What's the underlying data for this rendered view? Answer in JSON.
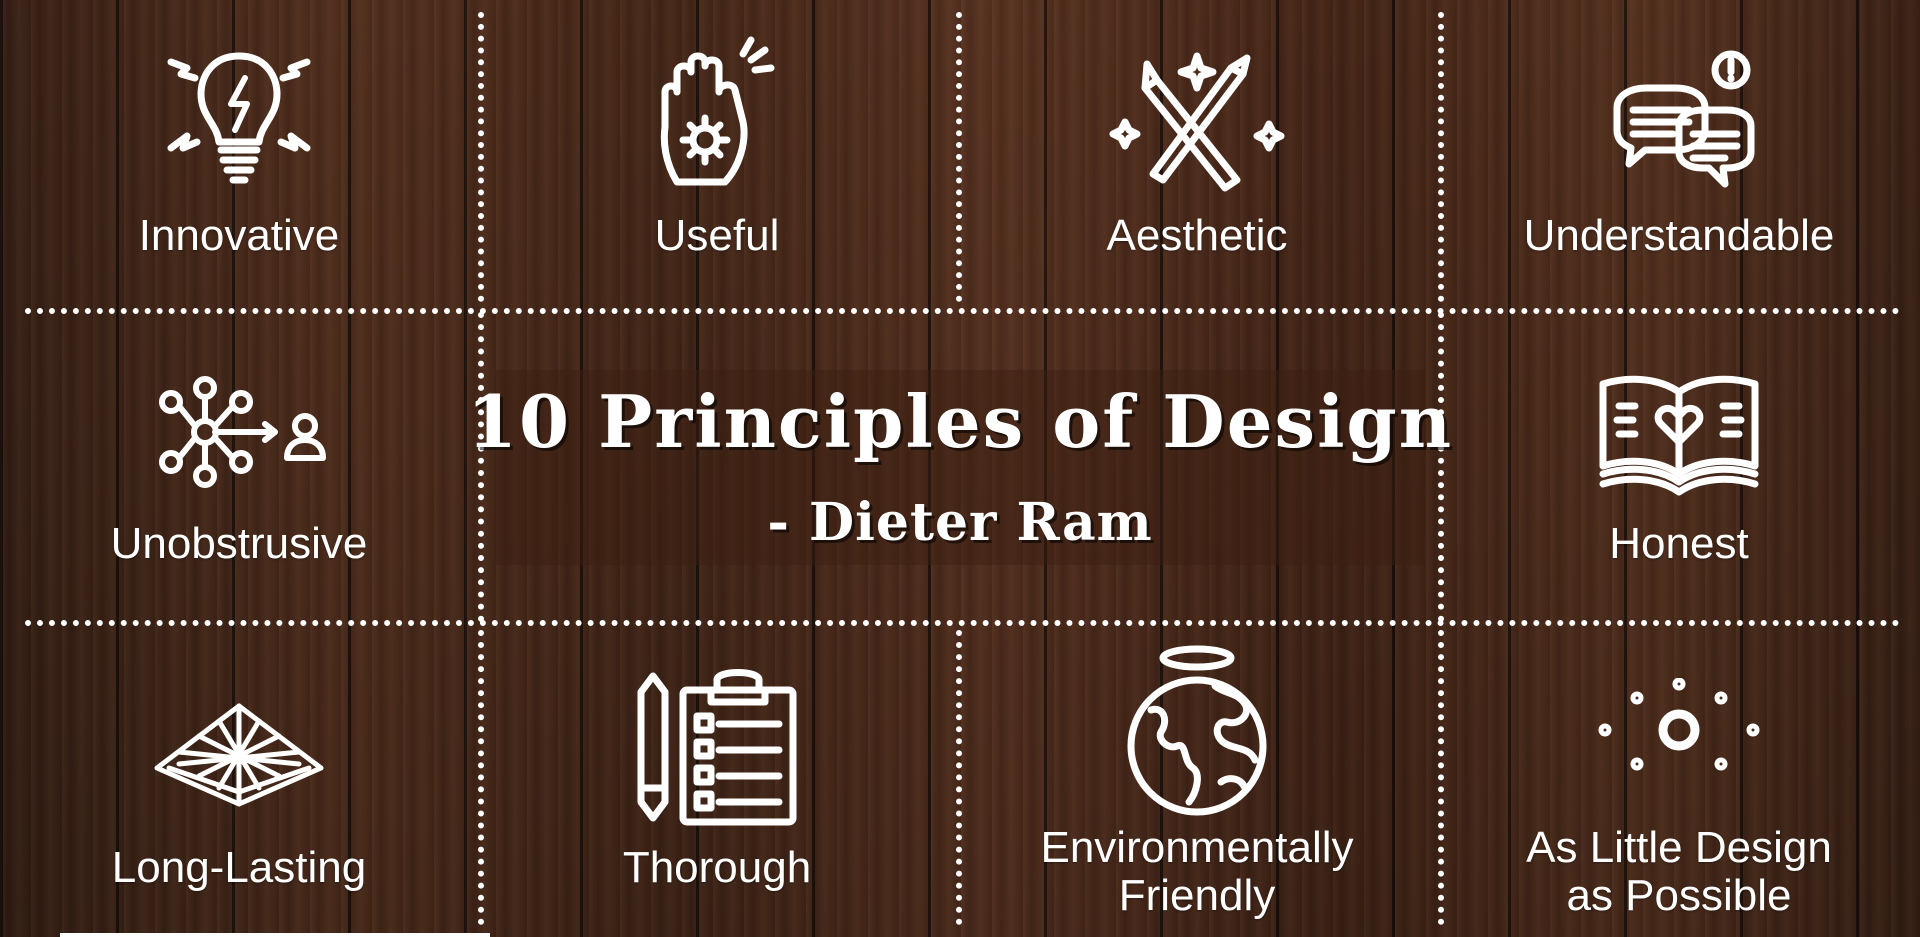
{
  "title": "10 Principles of Design",
  "subtitle": "- Dieter Ram",
  "principles": [
    {
      "label": "Innovative",
      "icon": "lightbulb-icon"
    },
    {
      "label": "Useful",
      "icon": "hand-gear-icon"
    },
    {
      "label": "Aesthetic",
      "icon": "pencil-brush-icon"
    },
    {
      "label": "Understandable",
      "icon": "speech-bubbles-icon"
    },
    {
      "label": "Unobstrusive",
      "icon": "network-user-icon"
    },
    {
      "label": "Honest",
      "icon": "book-heart-icon"
    },
    {
      "label": "Long-Lasting",
      "icon": "pyramid-icon"
    },
    {
      "label": "Thorough",
      "icon": "clipboard-checklist-icon"
    },
    {
      "label_lines": [
        "Environmentally",
        "Friendly"
      ],
      "icon": "earth-halo-icon"
    },
    {
      "label_lines": [
        "As Little Design",
        "as Possible"
      ],
      "icon": "minimal-circles-icon"
    }
  ],
  "colors": {
    "line": "#ffffff",
    "text": "#ffffff",
    "wood": "#4a2a1a"
  }
}
